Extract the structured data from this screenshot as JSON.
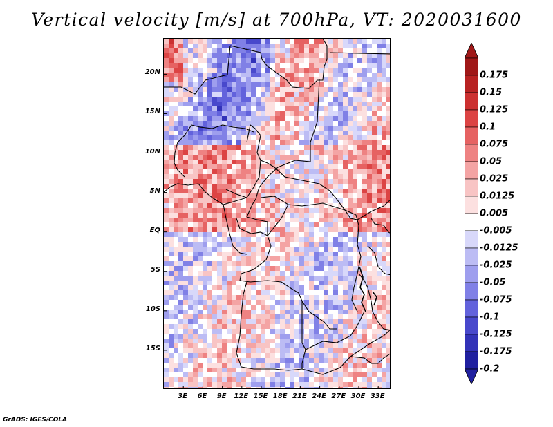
{
  "title": "Vertical velocity [m/s] at 700hPa, VT: 2020031600",
  "credit": "GrADS: IGES/COLA",
  "map": {
    "lon_range": [
      0,
      35
    ],
    "lat_range": [
      -20,
      24.5
    ],
    "lat_ticks": [
      "20N",
      "15N",
      "10N",
      "5N",
      "EQ",
      "5S",
      "10S",
      "15S"
    ],
    "lat_values": [
      20,
      15,
      10,
      5,
      0,
      -5,
      -10,
      -15
    ],
    "lon_ticks": [
      "3E",
      "6E",
      "9E",
      "12E",
      "15E",
      "18E",
      "21E",
      "24E",
      "27E",
      "30E",
      "33E"
    ],
    "lon_values": [
      3,
      6,
      9,
      12,
      15,
      18,
      21,
      24,
      27,
      30,
      33
    ]
  },
  "colorbar": {
    "labels": [
      "0.175",
      "0.15",
      "0.125",
      "0.1",
      "0.075",
      "0.05",
      "0.025",
      "0.0125",
      "0.005",
      "-0.005",
      "-0.0125",
      "-0.025",
      "-0.05",
      "-0.075",
      "-0.1",
      "-0.125",
      "-0.175",
      "-0.2"
    ],
    "colors": [
      "#a01818",
      "#b82222",
      "#cc3030",
      "#dc4444",
      "#e66262",
      "#ee8282",
      "#f4a4a4",
      "#f8c4c4",
      "#fce0e0",
      "#ffffff",
      "#d8d8fa",
      "#bcbcf4",
      "#9e9eee",
      "#8080e6",
      "#6262dc",
      "#4848cc",
      "#3232b8",
      "#2020a0"
    ]
  }
}
